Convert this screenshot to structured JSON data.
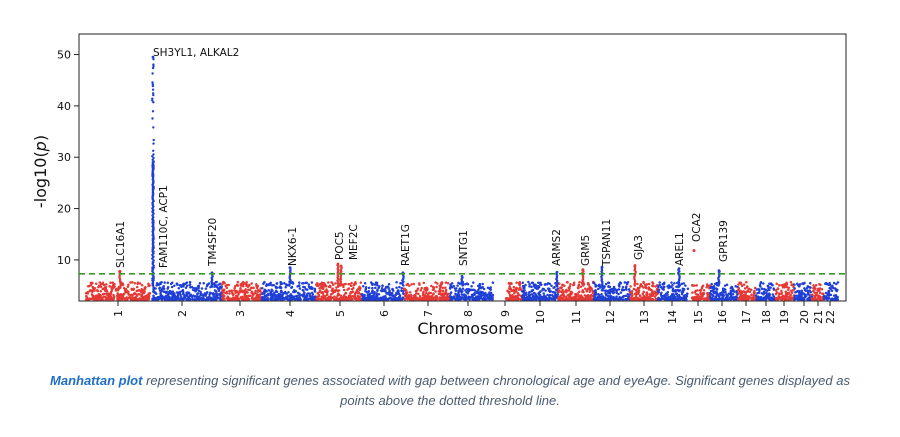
{
  "chart_data": {
    "type": "scatter",
    "subtype": "manhattan",
    "xlabel": "Chromosome",
    "ylabel": "-log10(p)",
    "ylim": [
      2,
      54
    ],
    "yticks": [
      10,
      20,
      30,
      40,
      50
    ],
    "threshold": 7.3,
    "threshold_style": "green dashed line",
    "grid": false,
    "colors": {
      "odd": "#e53935",
      "even": "#1f3fd6",
      "threshold": "#3a9a2a"
    },
    "chromosomes": [
      "1",
      "2",
      "3",
      "4",
      "5",
      "6",
      "7",
      "8",
      "9",
      "10",
      "11",
      "12",
      "13",
      "14",
      "15",
      "16",
      "17",
      "18",
      "19",
      "20",
      "21",
      "22"
    ],
    "peaks": [
      {
        "chromosome": "1",
        "label": "SLC16A1",
        "value": 7.8
      },
      {
        "chromosome": "2",
        "label": "SH3YL1, ALKAL2",
        "value": 49.5
      },
      {
        "chromosome": "2",
        "label": "FAM110C, ACP1",
        "value": 29
      },
      {
        "chromosome": "2",
        "label": "TM4SF20",
        "value": 7.5
      },
      {
        "chromosome": "4",
        "label": "NKX6-1",
        "value": 8.5
      },
      {
        "chromosome": "5",
        "label": "POC5",
        "value": 9.2
      },
      {
        "chromosome": "5",
        "label": "MEF2C",
        "value": 8.8
      },
      {
        "chromosome": "6",
        "label": "RAET1G",
        "value": 7.5
      },
      {
        "chromosome": "8",
        "label": "SNTG1",
        "value": 6.8
      },
      {
        "chromosome": "10",
        "label": "ARMS2",
        "value": 7.6
      },
      {
        "chromosome": "11",
        "label": "GRM5",
        "value": 8.1
      },
      {
        "chromosome": "12",
        "label": "TSPAN11",
        "value": 8.6
      },
      {
        "chromosome": "13",
        "label": "GJA3",
        "value": 8.9
      },
      {
        "chromosome": "14",
        "label": "AREL1",
        "value": 8.3
      },
      {
        "chromosome": "15",
        "label": "OCA2",
        "value": 11.8
      },
      {
        "chromosome": "16",
        "label": "GPR139",
        "value": 7.9
      }
    ]
  },
  "caption": {
    "lead": "Manhattan plot",
    "text": " representing significant genes associated with gap between chronological age and eyeAge. Significant genes displayed as points above the dotted threshold line."
  }
}
